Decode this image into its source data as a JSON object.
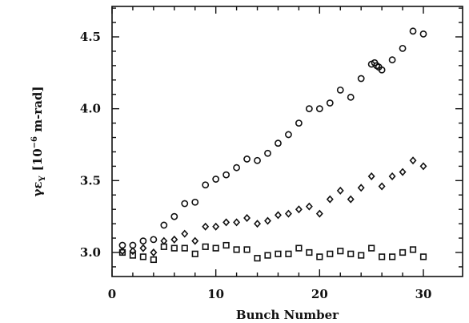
{
  "chart_data": {
    "type": "scatter",
    "title": "",
    "xlabel": "Bunch Number",
    "ylabel": "γε",
    "ylabel_sub": "Y",
    "ylabel_unit_prefix": "[10",
    "ylabel_unit_exp": "−6",
    "ylabel_unit_suffix": " m-rad]",
    "xlim": [
      0,
      31
    ],
    "ylim": [
      2.8,
      4.7
    ],
    "x_ticks": [
      0,
      10,
      20,
      30
    ],
    "x_tick_labels": [
      "0",
      "10",
      "20",
      "30"
    ],
    "y_ticks": [
      3.0,
      3.5,
      4.0,
      4.5
    ],
    "y_tick_labels": [
      "3.0",
      "3.5",
      "4.0",
      "4.5"
    ],
    "grid": false,
    "legend": "none",
    "series": [
      {
        "marker": "circle",
        "x": [
          1,
          2,
          3,
          4,
          5,
          6,
          7,
          8,
          9,
          10,
          11,
          12,
          13,
          14,
          15,
          16,
          17,
          18,
          19,
          20,
          21,
          22,
          23,
          24,
          25,
          25.3,
          25.5,
          25.7,
          26,
          27,
          28,
          29,
          30
        ],
        "y": [
          3.05,
          3.05,
          3.08,
          3.09,
          3.19,
          3.25,
          3.34,
          3.35,
          3.47,
          3.51,
          3.54,
          3.59,
          3.65,
          3.64,
          3.69,
          3.76,
          3.82,
          3.9,
          4.0,
          4.0,
          4.04,
          4.13,
          4.08,
          4.21,
          4.31,
          4.32,
          4.3,
          4.29,
          4.27,
          4.34,
          4.42,
          4.54,
          4.52
        ]
      },
      {
        "marker": "diamond",
        "x": [
          1,
          2,
          3,
          4,
          5,
          6,
          7,
          8,
          9,
          10,
          11,
          12,
          13,
          14,
          15,
          16,
          17,
          18,
          19,
          20,
          21,
          22,
          23,
          24,
          25,
          26,
          27,
          28,
          29,
          30
        ],
        "y": [
          3.01,
          3.01,
          3.03,
          3.0,
          3.08,
          3.09,
          3.13,
          3.08,
          3.18,
          3.18,
          3.21,
          3.21,
          3.24,
          3.2,
          3.22,
          3.26,
          3.27,
          3.3,
          3.32,
          3.27,
          3.37,
          3.43,
          3.37,
          3.45,
          3.53,
          3.46,
          3.53,
          3.56,
          3.64,
          3.6
        ]
      },
      {
        "marker": "square",
        "x": [
          1,
          2,
          3,
          4,
          5,
          6,
          7,
          8,
          9,
          10,
          11,
          12,
          13,
          14,
          15,
          16,
          17,
          18,
          19,
          20,
          21,
          22,
          23,
          24,
          25,
          26,
          27,
          28,
          29,
          30
        ],
        "y": [
          3.0,
          2.98,
          2.97,
          2.95,
          3.04,
          3.03,
          3.03,
          2.99,
          3.04,
          3.03,
          3.05,
          3.02,
          3.02,
          2.96,
          2.98,
          2.99,
          2.99,
          3.03,
          3.0,
          2.97,
          2.99,
          3.01,
          2.99,
          2.98,
          3.03,
          2.97,
          2.97,
          3.0,
          3.02,
          2.97
        ]
      }
    ]
  }
}
